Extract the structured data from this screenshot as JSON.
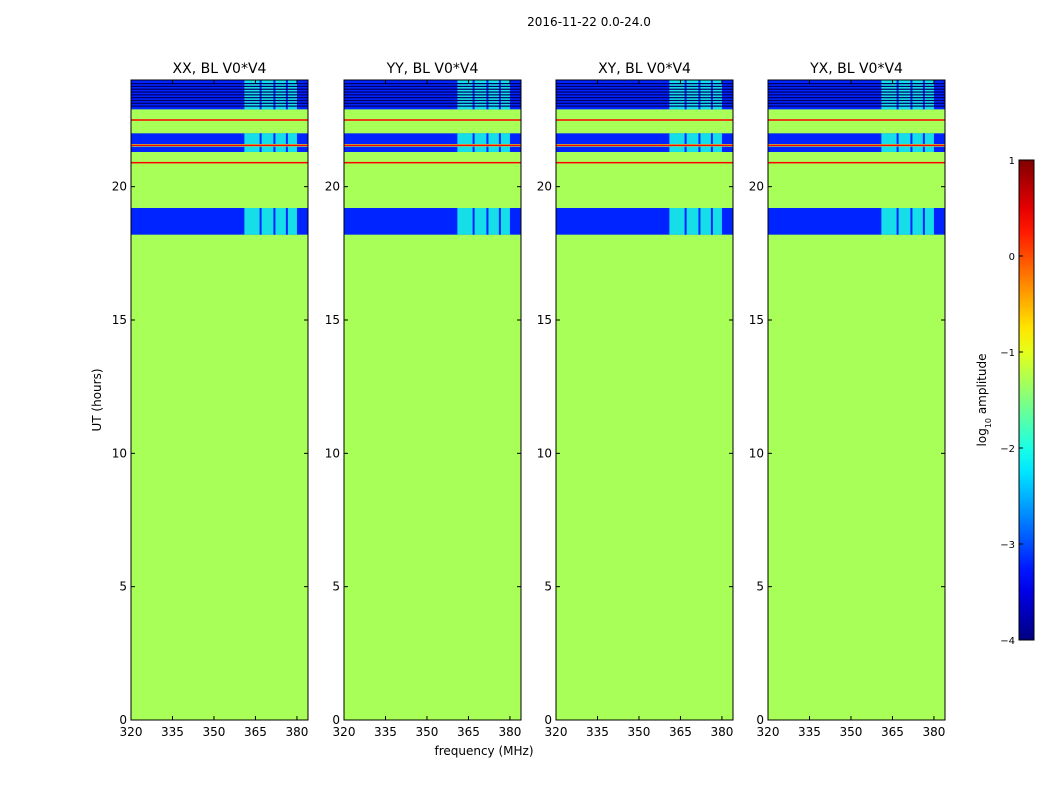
{
  "chart_data": {
    "type": "heatmap",
    "suptitle": "2016-11-22 0.0-24.0",
    "xlabel": "frequency (MHz)",
    "ylabel": "UT (hours)",
    "xlim": [
      320,
      384
    ],
    "ylim": [
      0,
      24
    ],
    "xticks": [
      320,
      335,
      350,
      365,
      380
    ],
    "yticks": [
      0,
      5,
      10,
      15,
      20
    ],
    "panels": [
      {
        "title": "XX, BL V0*V4"
      },
      {
        "title": "YY, BL V0*V4"
      },
      {
        "title": "XY, BL V0*V4"
      },
      {
        "title": "YX, BL V0*V4"
      }
    ],
    "colormap": "jet",
    "colorbar": {
      "label": "log10 amplitude",
      "range": [
        -4,
        1
      ],
      "ticks": [
        -4,
        -3,
        -2,
        -1,
        0,
        1
      ]
    },
    "background_value": -1.3,
    "noise_bands_UT": [
      [
        18.2,
        19.2
      ],
      [
        21.3,
        21.5
      ],
      [
        21.6,
        22.0
      ],
      [
        22.9,
        24.0
      ]
    ],
    "noise_band_value": -3.2,
    "bright_freq_range_MHz": [
      361,
      380
    ],
    "bright_value": -2.0,
    "flag_lines_UT": [
      20.9,
      21.55,
      22.5
    ],
    "flag_line_value": 0.4
  }
}
